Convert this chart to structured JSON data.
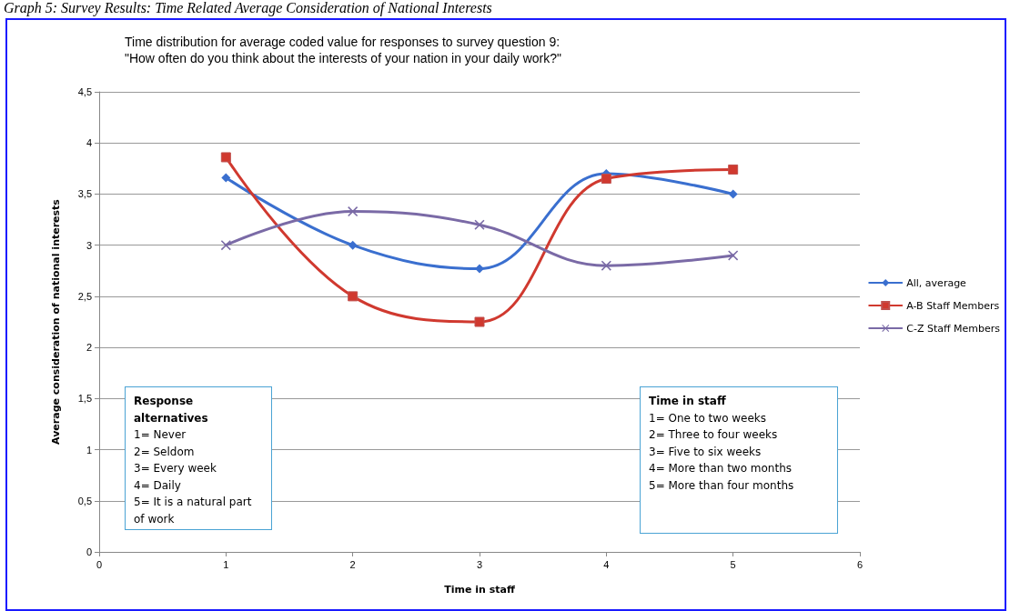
{
  "chart_data": {
    "type": "line",
    "title": "Time distribution for average coded value for responses to survey question 9:\n\"How often do you think about the interests of your nation in your daily work?\"",
    "subtitle": "Graph 5: Survey Results: Time Related Average Consideration of National Interests",
    "xlabel": "Time in staff",
    "ylabel": "Average consideration of national interests",
    "x": [
      1,
      2,
      3,
      4,
      5
    ],
    "series": [
      {
        "name": "All, average",
        "color": "#3a6fcf",
        "marker": "diamond",
        "values": [
          3.66,
          3.0,
          2.77,
          3.7,
          3.5
        ]
      },
      {
        "name": "A-B Staff Members",
        "color": "#d0392f",
        "marker": "square",
        "values": [
          3.86,
          2.5,
          2.25,
          3.65,
          3.74
        ]
      },
      {
        "name": "C-Z Staff Members",
        "color": "#7a6aa6",
        "marker": "cross",
        "values": [
          3.0,
          3.33,
          3.2,
          2.8,
          2.9
        ]
      }
    ],
    "xlim": [
      0,
      6
    ],
    "xticks": [
      0,
      1,
      2,
      3,
      4,
      5,
      6
    ],
    "ylim": [
      0,
      4.5
    ],
    "yticks": [
      0,
      {
        "value": 0.5,
        "label": "0,5"
      },
      1,
      {
        "value": 1.5,
        "label": "1,5"
      },
      2,
      {
        "value": 2.5,
        "label": "2,5"
      },
      3,
      {
        "value": 3.5,
        "label": "3,5"
      },
      4,
      {
        "value": 4.5,
        "label": "4,5"
      }
    ],
    "grid": "y",
    "legend": "right",
    "line_style": "solid",
    "annotations": [
      "Response alternatives\n1= Never\n2= Seldom\n3= Every week\n4= Daily\n5= It is a natural part of work",
      "Time in staff\n1= One to two weeks\n2= Three to four weeks\n3= Five to six weeks\n4= More than two months\n5= More than four months"
    ]
  }
}
